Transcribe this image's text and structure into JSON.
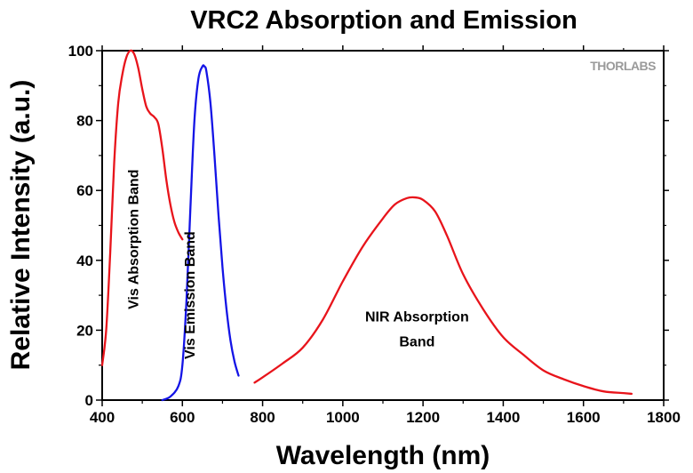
{
  "chart_data": {
    "type": "line",
    "title": "VRC2 Absorption and Emission",
    "xlabel": "Wavelength (nm)",
    "ylabel": "Relative Intensity (a.u.)",
    "xlim": [
      400,
      1800
    ],
    "ylim": [
      0,
      100
    ],
    "x_ticks": [
      400,
      600,
      800,
      1000,
      1200,
      1400,
      1600,
      1800
    ],
    "y_ticks": [
      0,
      20,
      40,
      60,
      80,
      100
    ],
    "grid": false,
    "logo_text": "THORLABS",
    "colors": {
      "absorption": "#e8141b",
      "emission": "#1414e6"
    },
    "series": [
      {
        "key": "vis_absorption",
        "color": "#e8141b",
        "x": [
          400,
          410,
          420,
          430,
          440,
          450,
          460,
          470,
          480,
          490,
          500,
          510,
          520,
          530,
          540,
          550,
          560,
          570,
          580,
          590,
          600
        ],
        "y": [
          10,
          20,
          42,
          68,
          85,
          93,
          98,
          100,
          99,
          95,
          89,
          84,
          82,
          81,
          79,
          72,
          63,
          56,
          51,
          48,
          46
        ]
      },
      {
        "key": "vis_emission",
        "color": "#1414e6",
        "x": [
          550,
          570,
          590,
          600,
          610,
          620,
          630,
          640,
          650,
          655,
          660,
          670,
          680,
          690,
          700,
          710,
          720,
          730,
          740
        ],
        "y": [
          0,
          1,
          4,
          10,
          28,
          55,
          80,
          92,
          95.5,
          95.5,
          94,
          85,
          70,
          53,
          38,
          26,
          17,
          11,
          7
        ]
      },
      {
        "key": "nir_absorption",
        "color": "#e8141b",
        "x": [
          780,
          800,
          850,
          900,
          950,
          1000,
          1050,
          1100,
          1130,
          1160,
          1180,
          1200,
          1230,
          1260,
          1300,
          1350,
          1400,
          1450,
          1500,
          1550,
          1600,
          1650,
          1700,
          1720
        ],
        "y": [
          5,
          6.5,
          10.5,
          15,
          23,
          34,
          44,
          52,
          56,
          57.8,
          58,
          57.3,
          54,
          47,
          36,
          26,
          18,
          13,
          8.5,
          6,
          4,
          2.5,
          2,
          1.8
        ]
      }
    ],
    "annotations": [
      {
        "text": "Vis Absorption Band",
        "x": 490,
        "y": 46,
        "rotate": -90
      },
      {
        "text": "Vis Emission Band",
        "x": 630,
        "y": 30,
        "rotate": -90
      },
      {
        "lines": [
          "NIR Absorption",
          "Band"
        ],
        "x": 1185,
        "y": 20,
        "rotate": 0
      }
    ]
  }
}
